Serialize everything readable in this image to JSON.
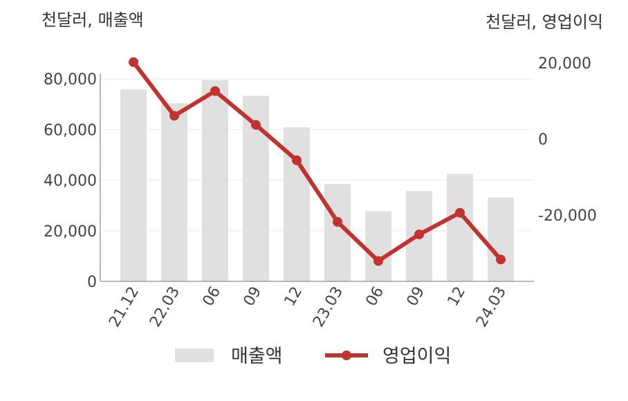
{
  "chart_data": {
    "type": "bar+line",
    "categories": [
      "21.12",
      "22.03",
      "06",
      "09",
      "12",
      "23.03",
      "06",
      "09",
      "12",
      "24.03"
    ],
    "left_axis_label": "천달러, 매출액",
    "right_axis_label": "천달러, 영업이익",
    "left_ylim": [
      0,
      80000
    ],
    "left_ticks": [
      0,
      20000,
      40000,
      60000,
      80000
    ],
    "left_tick_labels": [
      "0",
      "20,000",
      "40,000",
      "60,000",
      "80,000"
    ],
    "right_ticks": [
      20000,
      0,
      -20000
    ],
    "right_tick_labels": [
      "20,000",
      "0",
      "-20,000"
    ],
    "grid": true,
    "legend_position": "bottom",
    "series": [
      {
        "name": "매출액",
        "type": "bar",
        "axis": "left",
        "color": "#e0e0e0",
        "values": [
          75900,
          70400,
          79600,
          73300,
          60900,
          38500,
          27700,
          35700,
          42500,
          33200
        ]
      },
      {
        "name": "영업이익",
        "type": "line",
        "axis": "right",
        "color": "#c0332e",
        "values": [
          20200,
          6100,
          12600,
          3700,
          -5600,
          -21800,
          -32100,
          -25100,
          -19400,
          -31700
        ]
      }
    ]
  }
}
